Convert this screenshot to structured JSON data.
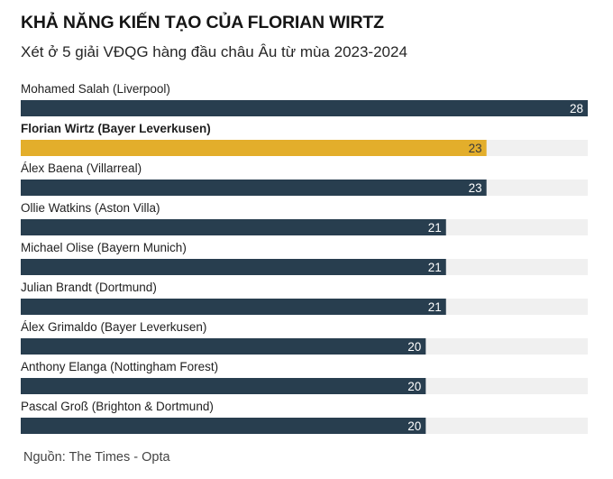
{
  "header": {
    "title": "KHẢ NĂNG KIẾN TẠO CỦA FLORIAN WIRTZ",
    "subtitle": "Xét ở 5 giải VĐQG hàng đầu châu Âu từ mùa 2023-2024"
  },
  "footer": {
    "source": "Nguồn: The Times - Opta"
  },
  "colors": {
    "bar": "#283e4f",
    "highlight": "#e3ae2b",
    "track": "#f0f0f0",
    "label_on_bar": "#ffffff",
    "label_on_highlight": "#3a3a3a"
  },
  "chart_data": {
    "type": "bar",
    "orientation": "horizontal",
    "categories": [
      "Mohamed Salah (Liverpool)",
      "Florian Wirtz (Bayer Leverkusen)",
      "Álex Baena (Villarreal)",
      "Ollie Watkins (Aston Villa)",
      "Michael Olise (Bayern Munich)",
      "Julian Brandt (Dortmund)",
      "Álex Grimaldo (Bayer Leverkusen)",
      "Anthony Elanga (Nottingham Forest)",
      "Pascal Groß (Brighton & Dortmund)"
    ],
    "values": [
      28,
      23,
      23,
      21,
      21,
      21,
      20,
      20,
      20
    ],
    "highlight_index": 1,
    "xlim": [
      0,
      28
    ],
    "grid": false,
    "legend": false
  }
}
